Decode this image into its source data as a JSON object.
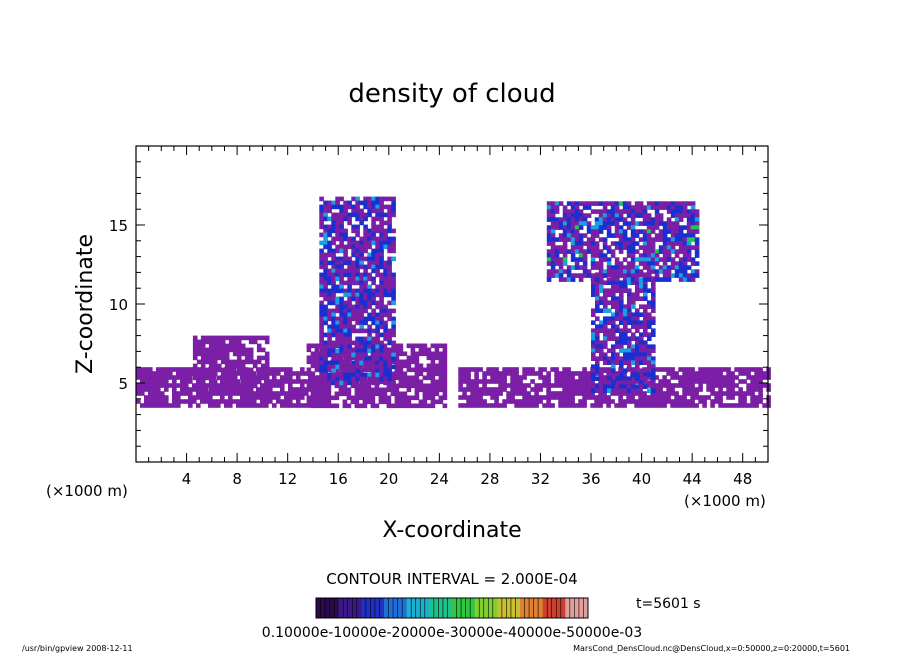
{
  "chart_data": {
    "type": "heatmap",
    "title": "density of cloud",
    "xlabel": "X-coordinate",
    "ylabel": "Z-coordinate",
    "x_unit_label": "(×1000 m)",
    "xlim": [
      0,
      50
    ],
    "ylim": [
      0,
      20
    ],
    "x_ticks": [
      4,
      8,
      12,
      16,
      20,
      24,
      28,
      32,
      36,
      40,
      44,
      48
    ],
    "y_ticks": [
      5,
      10,
      15
    ],
    "contour_interval_text": "CONTOUR INTERVAL = 2.000E-04",
    "time_text": "t=5601 s",
    "colorbar_text": "0.10000e-10000e-20000e-30000e-40000e-50000e-03",
    "footer_left": "/usr/bin/gpview   2008-12-11",
    "footer_right": "MarsCond_DensCloud.nc@DensCloud,x=0:50000,z=0:20000,t=5601",
    "colors": {
      "low": "#7a1fa6",
      "mid_low": "#1b2fd0",
      "mid": "#1aa0e0",
      "high": "#20c84a"
    },
    "cloud_regions": [
      {
        "name": "surface layer west",
        "x": [
          0,
          15
        ],
        "z": [
          3.7,
          6.0
        ],
        "level": "low"
      },
      {
        "name": "low cloud",
        "x": [
          4.5,
          10.5
        ],
        "z": [
          4.5,
          8.0
        ],
        "level": "low"
      },
      {
        "name": "surface layer central",
        "x": [
          13.5,
          24.5
        ],
        "z": [
          3.7,
          7.5
        ],
        "level": "low"
      },
      {
        "name": "plume west",
        "x": [
          14.5,
          20.5
        ],
        "z": [
          5.0,
          16.8
        ],
        "level": "mid_low"
      },
      {
        "name": "surface layer east",
        "x": [
          25.5,
          50
        ],
        "z": [
          3.7,
          6.0
        ],
        "level": "low"
      },
      {
        "name": "plume east stem",
        "x": [
          36,
          41
        ],
        "z": [
          4.5,
          12.0
        ],
        "level": "mid_low"
      },
      {
        "name": "plume east anvil",
        "x": [
          32.5,
          44.5
        ],
        "z": [
          11.5,
          16.5
        ],
        "level": "mid"
      }
    ]
  }
}
